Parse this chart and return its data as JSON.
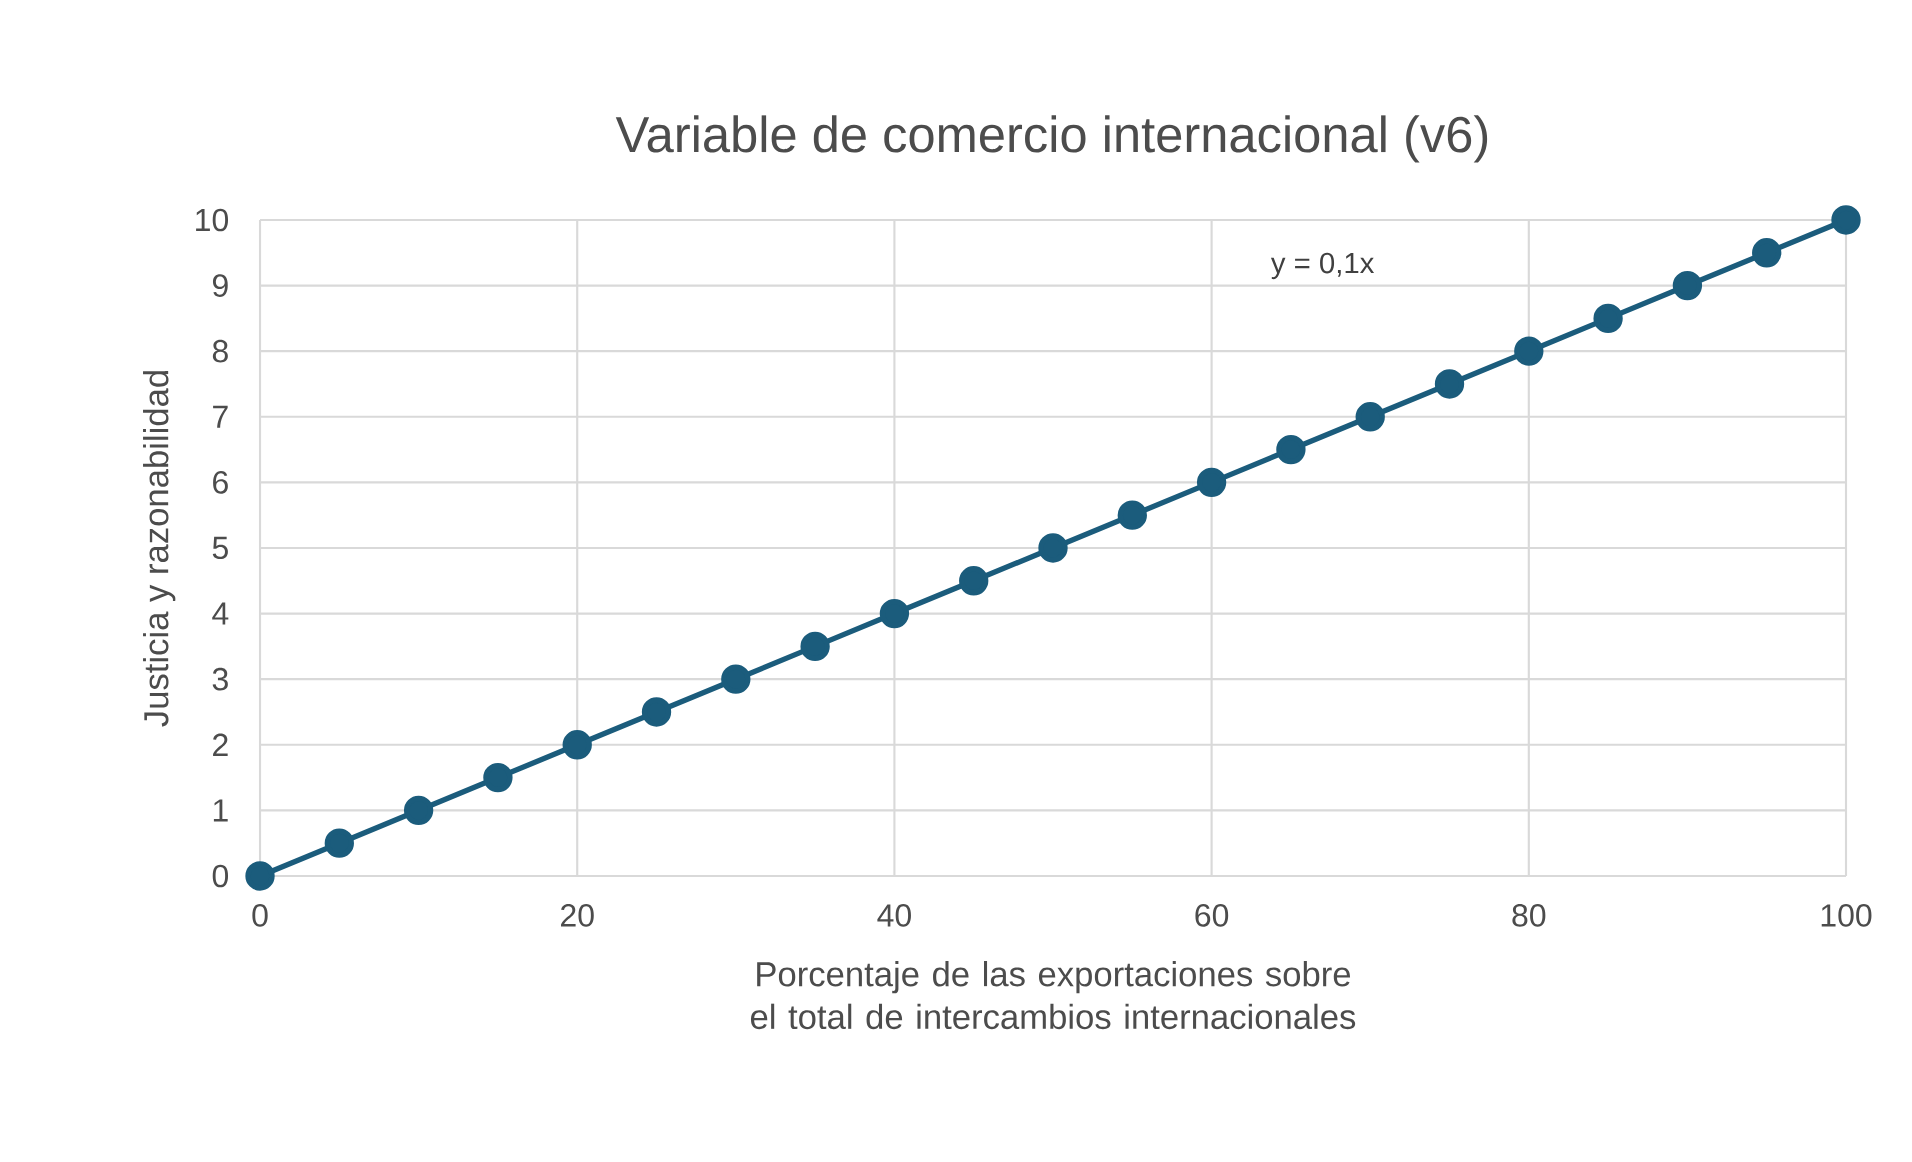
{
  "chart_data": {
    "type": "line",
    "title": "Variable de comercio internacional (v6)",
    "xlabel": "Porcentaje de las exportaciones sobre el total de intercambios internacionales",
    "ylabel": "Justicia y razonabilidad",
    "x": [
      0,
      5,
      10,
      15,
      20,
      25,
      30,
      35,
      40,
      45,
      50,
      55,
      60,
      65,
      70,
      75,
      80,
      85,
      90,
      95,
      100
    ],
    "series": [
      {
        "color": "#1b5c7c",
        "values": [
          0,
          0.5,
          1,
          1.5,
          2,
          2.5,
          3,
          3.5,
          4,
          4.5,
          5,
          5.5,
          6,
          6.5,
          7,
          7.5,
          8,
          8.5,
          9,
          9.5,
          10
        ]
      }
    ],
    "marker": "circle",
    "line_style": "solid",
    "grid": true,
    "xlim": [
      0,
      100
    ],
    "xticks": [
      0,
      20,
      40,
      60,
      80,
      100
    ],
    "ylim": [
      0,
      10
    ],
    "yticks": [
      0,
      1,
      2,
      3,
      4,
      5,
      6,
      7,
      8,
      9,
      10
    ],
    "annotations": [
      "y = 0,1x"
    ]
  }
}
